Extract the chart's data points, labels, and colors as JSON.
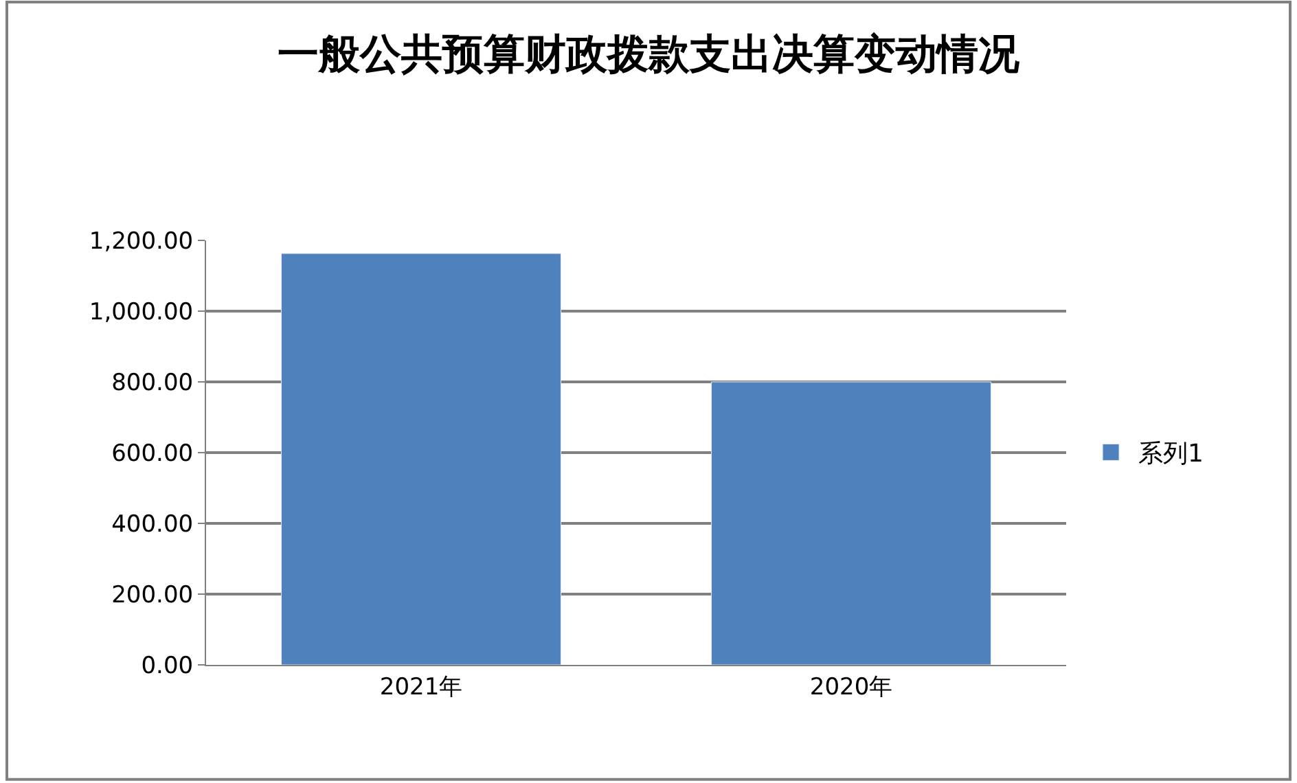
{
  "chart_data": {
    "type": "bar",
    "title": "一般公共预算财政拨款支出决算变动情况",
    "categories": [
      "2021年",
      "2020年"
    ],
    "series": [
      {
        "name": "系列1",
        "color": "#4f81bd",
        "values": [
          1163,
          800
        ]
      }
    ],
    "ylim": [
      0,
      1200
    ],
    "yticks": [
      {
        "value": 0,
        "label": "0.00"
      },
      {
        "value": 200,
        "label": "200.00"
      },
      {
        "value": 400,
        "label": "400.00"
      },
      {
        "value": 600,
        "label": "600.00"
      },
      {
        "value": 800,
        "label": "800.00"
      },
      {
        "value": 1000,
        "label": "1,000.00"
      },
      {
        "value": 1200,
        "label": "1,200.00"
      }
    ],
    "grid": "y",
    "legend": "right"
  }
}
